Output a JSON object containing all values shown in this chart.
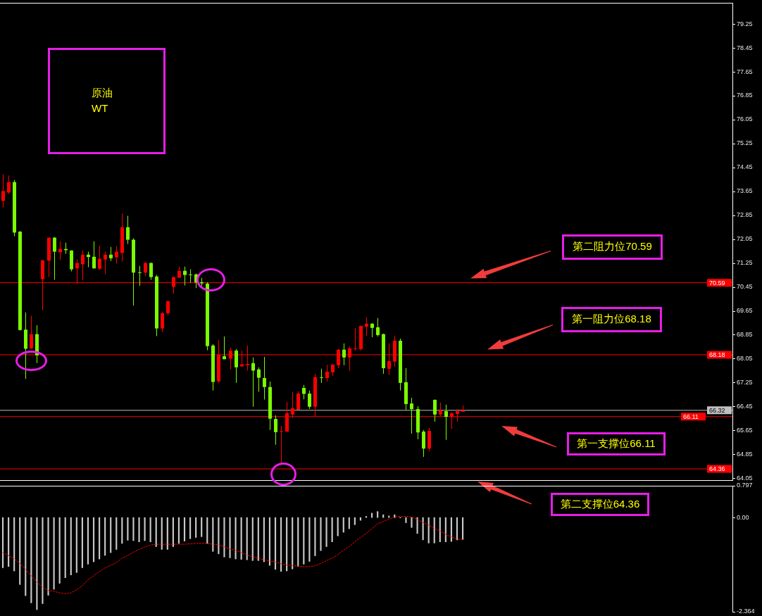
{
  "chart_data": [
    {
      "type": "candlestick",
      "title": "原油\nWT",
      "categories": [
        null,
        null,
        null,
        null,
        null,
        null,
        null,
        null,
        null,
        null,
        null,
        null,
        null,
        null,
        null,
        null,
        null,
        null,
        null,
        null,
        null,
        null,
        null,
        null,
        null,
        null,
        null,
        null,
        null,
        null,
        null,
        null,
        null,
        null,
        null,
        null,
        null,
        null,
        null,
        null,
        null,
        null,
        null,
        null,
        null,
        null,
        null,
        null,
        null,
        null,
        null,
        null,
        null,
        null,
        null,
        null,
        null,
        null,
        null,
        null,
        null,
        null,
        null,
        null,
        null,
        null,
        null,
        null,
        null,
        null,
        null,
        null,
        null,
        null,
        null,
        null,
        null,
        null,
        null,
        null,
        null,
        null,
        null,
        null,
        null,
        null,
        null,
        null,
        null,
        null,
        null,
        null,
        null,
        null,
        null,
        null,
        null,
        null,
        null,
        null,
        null,
        null,
        null,
        null,
        null,
        null,
        null,
        null,
        null,
        null,
        null,
        null,
        null,
        null,
        null,
        null,
        null,
        null,
        null,
        null,
        null,
        null,
        null,
        null,
        null,
        null,
        null,
        null,
        null
      ],
      "ohlc": [
        [
          73.33,
          74.22,
          73.11,
          73.66
        ],
        [
          73.61,
          74.18,
          73.56,
          73.96
        ],
        [
          73.96,
          74.03,
          72.15,
          72.27
        ],
        [
          72.3,
          72.32,
          68.99,
          69.01
        ],
        [
          69.02,
          69.6,
          67.37,
          68.38
        ],
        [
          68.39,
          69.48,
          68.37,
          68.87
        ],
        [
          68.87,
          69.17,
          67.9,
          68.16
        ],
        [
          70.71,
          71.36,
          69.67,
          71.34
        ],
        [
          71.33,
          72.1,
          70.78,
          72.1
        ],
        [
          72.1,
          72.12,
          70.69,
          71.63
        ],
        [
          71.61,
          71.98,
          71.35,
          71.72
        ],
        [
          71.72,
          71.93,
          71.56,
          71.68
        ],
        [
          71.67,
          71.67,
          70.97,
          71.04
        ],
        [
          71.07,
          71.37,
          70.55,
          71.25
        ],
        [
          71.21,
          71.67,
          70.67,
          71.53
        ],
        [
          71.53,
          71.63,
          71.11,
          71.45
        ],
        [
          71.46,
          71.98,
          71.07,
          71.07
        ],
        [
          71.06,
          71.82,
          71.01,
          71.39
        ],
        [
          71.37,
          71.63,
          70.87,
          71.53
        ],
        [
          71.53,
          71.79,
          71.32,
          71.41
        ],
        [
          71.44,
          71.82,
          71.23,
          71.63
        ],
        [
          71.59,
          72.9,
          71.3,
          72.45
        ],
        [
          72.45,
          72.83,
          71.89,
          72.03
        ],
        [
          72.03,
          72.08,
          69.82,
          70.93
        ],
        [
          70.94,
          71.15,
          70.49,
          70.93
        ],
        [
          70.93,
          71.3,
          70.81,
          71.25
        ],
        [
          71.25,
          71.27,
          70.69,
          70.78
        ],
        [
          70.8,
          70.85,
          68.8,
          69.06
        ],
        [
          69.06,
          69.62,
          68.94,
          69.57
        ],
        [
          69.57,
          70.0,
          69.49,
          69.97
        ],
        [
          70.45,
          70.8,
          70.22,
          70.78
        ],
        [
          70.76,
          71.13,
          70.76,
          70.99
        ],
        [
          70.99,
          71.13,
          70.5,
          70.85
        ],
        [
          70.87,
          71.04,
          70.59,
          70.85
        ],
        [
          70.87,
          70.9,
          70.41,
          70.6
        ],
        [
          70.61,
          70.75,
          70.48,
          70.57
        ],
        [
          70.56,
          70.61,
          68.33,
          68.47
        ],
        [
          68.49,
          68.54,
          66.98,
          67.27
        ],
        [
          67.29,
          68.68,
          67.24,
          68.18
        ],
        [
          68.13,
          68.79,
          68.03,
          68.03
        ],
        [
          68.05,
          68.42,
          67.69,
          68.32
        ],
        [
          68.32,
          68.37,
          67.24,
          67.76
        ],
        [
          67.79,
          68.32,
          67.79,
          67.86
        ],
        [
          67.83,
          68.49,
          67.65,
          67.87
        ],
        [
          67.9,
          68.09,
          66.44,
          67.65
        ],
        [
          67.69,
          67.76,
          66.94,
          67.41
        ],
        [
          67.4,
          68.11,
          66.68,
          67.1
        ],
        [
          67.1,
          67.28,
          65.66,
          66.04
        ],
        [
          66.03,
          66.15,
          65.17,
          65.59
        ],
        [
          65.61,
          65.8,
          64.52,
          65.63
        ],
        [
          65.61,
          66.6,
          65.59,
          66.22
        ],
        [
          66.18,
          66.93,
          66.06,
          66.39
        ],
        [
          66.34,
          66.95,
          66.34,
          66.88
        ],
        [
          67.07,
          67.17,
          66.69,
          66.87
        ],
        [
          66.88,
          66.98,
          66.37,
          66.44
        ],
        [
          66.44,
          67.54,
          66.11,
          67.43
        ],
        [
          67.43,
          67.71,
          67.24,
          67.41
        ],
        [
          67.4,
          67.85,
          67.28,
          67.61
        ],
        [
          67.59,
          67.87,
          67.47,
          67.85
        ],
        [
          67.83,
          68.37,
          67.73,
          68.35
        ],
        [
          68.35,
          68.56,
          67.83,
          68.09
        ],
        [
          68.09,
          68.46,
          67.64,
          68.39
        ],
        [
          68.37,
          69.08,
          68.32,
          68.39
        ],
        [
          68.37,
          69.15,
          68.32,
          69.15
        ],
        [
          69.12,
          69.43,
          68.82,
          69.22
        ],
        [
          69.22,
          69.24,
          68.77,
          69.08
        ],
        [
          69.1,
          69.41,
          68.79,
          68.84
        ],
        [
          68.87,
          68.89,
          67.54,
          67.73
        ],
        [
          67.71,
          68.56,
          67.5,
          67.97
        ],
        [
          67.95,
          68.82,
          67.78,
          68.65
        ],
        [
          68.65,
          68.72,
          66.98,
          67.24
        ],
        [
          67.26,
          67.73,
          66.34,
          66.53
        ],
        [
          66.55,
          66.74,
          65.54,
          66.36
        ],
        [
          66.36,
          66.46,
          65.35,
          65.58
        ],
        [
          65.61,
          65.66,
          64.76,
          65.04
        ],
        [
          65.04,
          65.73,
          64.95,
          65.63
        ],
        [
          66.67,
          66.69,
          65.94,
          66.18
        ],
        [
          66.18,
          66.58,
          66.13,
          66.32
        ],
        [
          66.29,
          66.51,
          65.33,
          66.1
        ],
        [
          66.1,
          66.25,
          65.7,
          66.22
        ],
        [
          66.2,
          66.36,
          65.94,
          66.29
        ],
        [
          66.27,
          66.48,
          66.27,
          66.32
        ],
        null,
        null,
        null,
        null,
        null,
        null,
        null,
        null,
        null,
        null,
        null,
        null,
        null,
        null,
        null,
        null,
        null,
        null,
        null,
        null,
        null,
        null,
        null,
        null,
        null,
        null,
        null,
        null,
        null,
        null,
        null,
        null,
        null,
        null,
        null,
        null,
        null,
        null,
        null,
        null,
        null,
        null,
        null,
        null,
        null,
        null,
        null
      ],
      "colors": [
        "#ff0000",
        "#ff0000",
        "#7cfc00",
        "#7cfc00",
        "#7cfc00",
        "#ff0000",
        "#7cfc00",
        "#ff0000",
        "#ff0000",
        "#7cfc00",
        "#ff0000",
        "#7cfc00",
        "#7cfc00",
        "#ff0000",
        "#ff0000",
        "#7cfc00",
        "#7cfc00",
        "#ff0000",
        "#ff0000",
        "#7cfc00",
        "#ff0000",
        "#ff0000",
        "#7cfc00",
        "#7cfc00",
        "#7cfc00",
        "#ff0000",
        "#7cfc00",
        "#7cfc00",
        "#ff0000",
        "#ff0000",
        "#ff0000",
        "#ff0000",
        "#7cfc00",
        "#7cfc00",
        "#7cfc00",
        "#7cfc00",
        "#7cfc00",
        "#7cfc00",
        "#ff0000",
        "#7cfc00",
        "#ff0000",
        "#7cfc00",
        "#ff0000",
        "#ff0000",
        "#7cfc00",
        "#7cfc00",
        "#7cfc00",
        "#7cfc00",
        "#7cfc00",
        "#ff0000",
        "#ff0000",
        "#ff0000",
        "#ff0000",
        "#7cfc00",
        "#7cfc00",
        "#ff0000",
        "#7cfc00",
        "#ff0000",
        "#ff0000",
        "#ff0000",
        "#7cfc00",
        "#ff0000",
        "#ff0000",
        "#ff0000",
        "#ff0000",
        "#7cfc00",
        "#7cfc00",
        "#7cfc00",
        "#ff0000",
        "#ff0000",
        "#7cfc00",
        "#7cfc00",
        "#7cfc00",
        "#7cfc00",
        "#7cfc00",
        "#ff0000",
        "#7cfc00",
        "#ff0000",
        "#7cfc00",
        "#ff0000",
        "#ff0000",
        "#ff0000",
        null,
        null,
        null,
        null,
        null,
        null,
        null,
        null,
        null,
        null,
        null,
        null,
        null,
        null,
        null,
        null,
        null,
        null,
        null,
        null,
        null,
        null,
        null,
        null,
        null,
        null,
        null,
        null,
        null,
        null,
        null,
        null,
        null,
        null,
        null,
        null,
        null,
        null,
        null,
        null,
        null,
        null,
        null,
        null,
        null,
        null,
        null
      ],
      "ylim": [
        63.96,
        79.96
      ],
      "yticks": [
        79.25,
        78.45,
        77.65,
        76.85,
        {
          "value": 76.05,
          "label": "76.05"
        },
        75.25,
        74.45,
        73.65,
        72.85,
        {
          "value": 72.05,
          "label": "72.05"
        },
        71.25,
        70.45,
        69.65,
        68.85,
        {
          "value": 68.05,
          "label": "68.05"
        },
        67.25,
        66.45,
        65.65,
        64.85,
        {
          "value": 64.05,
          "label": "64.05"
        }
      ],
      "ref_lines": [
        {
          "axis": "y",
          "value": 70.59,
          "label": "70.59",
          "color": "#ff0000"
        },
        {
          "axis": "y",
          "value": 68.18,
          "label": "68.18",
          "color": "#ff0000"
        },
        {
          "axis": "y",
          "value": 66.32,
          "label": "66.32",
          "color": "#c0c0c0"
        },
        {
          "axis": "y",
          "value": 66.11,
          "label": "66.11",
          "color": "#ff0000"
        },
        {
          "axis": "y",
          "value": 64.36,
          "label": "64.36",
          "color": "#ff0000"
        }
      ],
      "annotations": [
        {
          "text": "第二阻力位70.59",
          "y": 70.59
        },
        {
          "text": "第一阻力位68.18",
          "y": 68.18
        },
        {
          "text": "第一支撑位66.11",
          "y": 66.11
        },
        {
          "text": "第二支撑位64.36",
          "y": 64.36
        }
      ]
    },
    {
      "type": "bar",
      "categories": [
        null,
        null,
        null,
        null,
        null,
        null,
        null,
        null,
        null,
        null,
        null,
        null,
        null,
        null,
        null,
        null,
        null,
        null,
        null,
        null,
        null,
        null,
        null,
        null,
        null,
        null,
        null,
        null,
        null,
        null,
        null,
        null,
        null,
        null,
        null,
        null,
        null,
        null,
        null,
        null,
        null,
        null,
        null,
        null,
        null,
        null,
        null,
        null,
        null,
        null,
        null,
        null,
        null,
        null,
        null,
        null,
        null,
        null,
        null,
        null,
        null,
        null,
        null,
        null,
        null,
        null,
        null,
        null,
        null,
        null,
        null,
        null,
        null,
        null,
        null,
        null,
        null,
        null,
        null,
        null,
        null,
        null,
        null,
        null,
        null,
        null,
        null,
        null,
        null,
        null,
        null,
        null,
        null,
        null,
        null,
        null,
        null,
        null,
        null,
        null,
        null,
        null,
        null,
        null,
        null,
        null,
        null,
        null,
        null,
        null,
        null,
        null,
        null,
        null,
        null,
        null,
        null,
        null,
        null,
        null,
        null,
        null,
        null,
        null,
        null,
        null,
        null,
        null,
        null
      ],
      "series": [
        {
          "type": "bar",
          "color": "#c8c8c8",
          "values": [
            -1.26,
            -1.23,
            -1.34,
            -1.68,
            -1.96,
            -2.14,
            -2.31,
            -2.16,
            -1.95,
            -1.8,
            -1.65,
            -1.51,
            -1.44,
            -1.38,
            -1.26,
            -1.17,
            -1.11,
            -1.04,
            -0.95,
            -0.88,
            -0.8,
            -0.65,
            -0.57,
            -0.58,
            -0.61,
            -0.58,
            -0.61,
            -0.73,
            -0.8,
            -0.8,
            -0.73,
            -0.65,
            -0.59,
            -0.53,
            -0.5,
            -0.48,
            -0.65,
            -0.85,
            -0.91,
            -0.99,
            -1.01,
            -1.04,
            -1.05,
            -1.06,
            -1.08,
            -1.08,
            -1.11,
            -1.2,
            -1.3,
            -1.35,
            -1.34,
            -1.29,
            -1.23,
            -1.17,
            -1.1,
            -0.96,
            -0.83,
            -0.73,
            -0.61,
            -0.46,
            -0.37,
            -0.28,
            -0.18,
            -0.07,
            0.03,
            0.11,
            0.15,
            0.07,
            0.04,
            0.07,
            -0.01,
            -0.13,
            -0.25,
            -0.4,
            -0.56,
            -0.64,
            -0.64,
            -0.61,
            -0.61,
            -0.6,
            -0.56,
            -0.55,
            null,
            null,
            null,
            null,
            null,
            null,
            null,
            null,
            null,
            null,
            null,
            null,
            null,
            null,
            null,
            null,
            null,
            null,
            null,
            null,
            null,
            null,
            null,
            null,
            null,
            null,
            null,
            null,
            null,
            null,
            null,
            null,
            null,
            null,
            null,
            null,
            null,
            null,
            null,
            null,
            null,
            null,
            null,
            null,
            null,
            null,
            null
          ]
        },
        {
          "type": "line",
          "color": "#ff0000",
          "line_style": "dashed",
          "values": [
            -0.88,
            -0.95,
            -1.04,
            -1.15,
            -1.3,
            -1.46,
            -1.62,
            -1.74,
            -1.83,
            -1.85,
            -1.89,
            -1.91,
            -1.89,
            -1.81,
            -1.71,
            -1.56,
            -1.46,
            -1.36,
            -1.26,
            -1.2,
            -1.13,
            -1.02,
            -0.95,
            -0.87,
            -0.8,
            -0.74,
            -0.69,
            -0.67,
            -0.67,
            -0.67,
            -0.67,
            -0.67,
            -0.67,
            -0.66,
            -0.65,
            -0.64,
            -0.65,
            -0.67,
            -0.68,
            -0.73,
            -0.79,
            -0.82,
            -0.88,
            -0.94,
            -0.99,
            -1.02,
            -1.06,
            -1.09,
            -1.11,
            -1.16,
            -1.19,
            -1.2,
            -1.22,
            -1.23,
            -1.23,
            -1.21,
            -1.15,
            -1.08,
            -1.02,
            -0.93,
            -0.82,
            -0.73,
            -0.61,
            -0.5,
            -0.4,
            -0.28,
            -0.16,
            -0.1,
            -0.04,
            0.01,
            0.03,
            0.03,
            0.01,
            -0.05,
            -0.12,
            -0.19,
            -0.27,
            -0.34,
            -0.42,
            -0.49,
            -0.54,
            -0.55,
            null,
            null,
            null,
            null,
            null,
            null,
            null,
            null,
            null,
            null,
            null,
            null,
            null,
            null,
            null,
            null,
            null,
            null,
            null,
            null,
            null,
            null,
            null,
            null,
            null,
            null,
            null,
            null,
            null,
            null,
            null,
            null,
            null,
            null,
            null,
            null,
            null,
            null,
            null,
            null,
            null,
            null,
            null,
            null,
            null,
            null,
            null
          ]
        }
      ],
      "ylim": [
        -2.364,
        0.797
      ],
      "yticks": [
        0.797,
        {
          "value": 0,
          "label": "0.00"
        },
        -2.364
      ]
    }
  ]
}
